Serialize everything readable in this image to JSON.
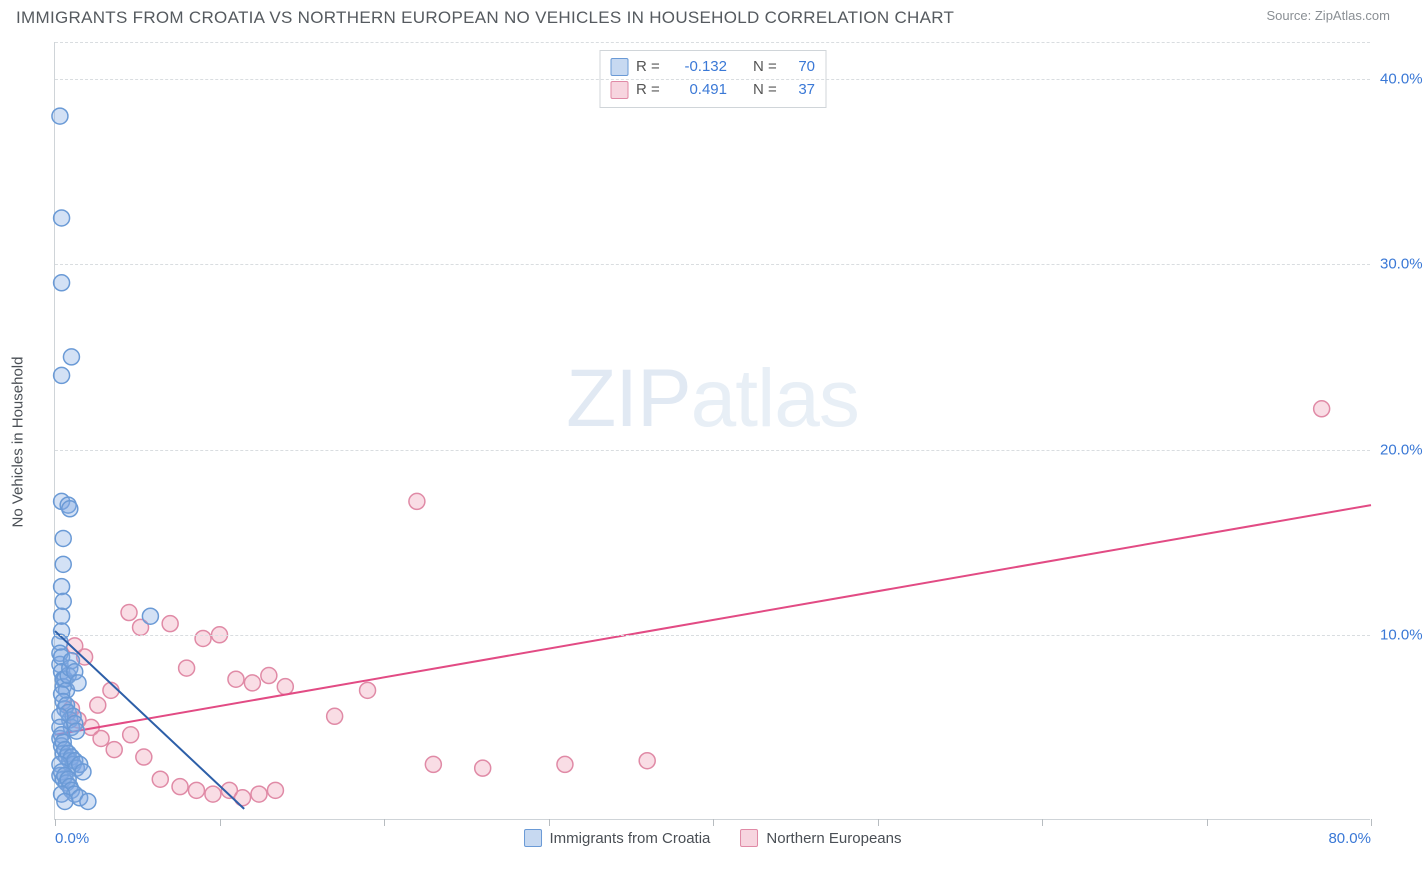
{
  "header": {
    "title": "IMMIGRANTS FROM CROATIA VS NORTHERN EUROPEAN NO VEHICLES IN HOUSEHOLD CORRELATION CHART",
    "source_prefix": "Source: ",
    "source_name": "ZipAtlas.com"
  },
  "chart": {
    "type": "scatter",
    "ylabel": "No Vehicles in Household",
    "watermark_a": "ZIP",
    "watermark_b": "atlas",
    "background_color": "#ffffff",
    "grid_color": "#d9dde0",
    "axis_color": "#cfd4d8",
    "axis_label_color": "#3a78d6",
    "xlim": [
      0,
      80
    ],
    "ylim": [
      0,
      42
    ],
    "x_ticks": [
      0,
      10,
      20,
      30,
      40,
      50,
      60,
      70,
      80
    ],
    "x_tick_labels": {
      "0": "0.0%",
      "80": "80.0%"
    },
    "y_gridlines": [
      10,
      20,
      30,
      40,
      42
    ],
    "y_tick_labels": {
      "10": "10.0%",
      "20": "20.0%",
      "30": "30.0%",
      "40": "40.0%"
    },
    "marker_radius": 8,
    "marker_stroke_width": 1.5,
    "line_width": 2,
    "series": {
      "croatia": {
        "label": "Immigrants from Croatia",
        "fill": "rgba(130,170,225,0.35)",
        "stroke": "#6a9ad6",
        "trend_color": "#2d5fa8",
        "trend": {
          "x1": 0,
          "y1": 10.2,
          "x2": 11.5,
          "y2": 0.6
        },
        "points": [
          [
            0.3,
            38.0
          ],
          [
            0.4,
            29.0
          ],
          [
            1.0,
            25.0
          ],
          [
            0.4,
            24.0
          ],
          [
            0.4,
            32.5
          ],
          [
            0.4,
            17.2
          ],
          [
            0.8,
            17.0
          ],
          [
            0.9,
            16.8
          ],
          [
            0.5,
            15.2
          ],
          [
            0.5,
            13.8
          ],
          [
            0.4,
            12.6
          ],
          [
            0.5,
            11.8
          ],
          [
            0.4,
            11.0
          ],
          [
            0.4,
            10.2
          ],
          [
            0.3,
            9.6
          ],
          [
            0.3,
            9.0
          ],
          [
            0.3,
            8.4
          ],
          [
            0.4,
            8.8
          ],
          [
            0.4,
            8.0
          ],
          [
            0.5,
            7.6
          ],
          [
            0.5,
            7.2
          ],
          [
            0.6,
            7.6
          ],
          [
            0.7,
            7.0
          ],
          [
            0.8,
            7.8
          ],
          [
            0.9,
            8.2
          ],
          [
            1.0,
            8.6
          ],
          [
            1.2,
            8.0
          ],
          [
            1.4,
            7.4
          ],
          [
            0.4,
            6.8
          ],
          [
            0.5,
            6.4
          ],
          [
            0.6,
            6.0
          ],
          [
            0.7,
            6.2
          ],
          [
            0.8,
            5.8
          ],
          [
            0.9,
            5.4
          ],
          [
            1.0,
            5.0
          ],
          [
            1.1,
            5.6
          ],
          [
            1.2,
            5.2
          ],
          [
            1.3,
            4.8
          ],
          [
            0.3,
            5.6
          ],
          [
            0.3,
            5.0
          ],
          [
            0.3,
            4.4
          ],
          [
            0.4,
            4.6
          ],
          [
            0.4,
            4.0
          ],
          [
            0.5,
            4.2
          ],
          [
            0.5,
            3.6
          ],
          [
            0.6,
            3.8
          ],
          [
            0.7,
            3.4
          ],
          [
            0.8,
            3.6
          ],
          [
            0.9,
            3.2
          ],
          [
            1.0,
            3.4
          ],
          [
            1.1,
            3.0
          ],
          [
            1.2,
            3.2
          ],
          [
            1.3,
            2.8
          ],
          [
            1.5,
            3.0
          ],
          [
            1.7,
            2.6
          ],
          [
            0.3,
            3.0
          ],
          [
            0.3,
            2.4
          ],
          [
            0.4,
            2.6
          ],
          [
            0.5,
            2.2
          ],
          [
            0.6,
            2.4
          ],
          [
            0.7,
            2.0
          ],
          [
            0.8,
            2.2
          ],
          [
            0.9,
            1.8
          ],
          [
            1.0,
            1.6
          ],
          [
            1.2,
            1.4
          ],
          [
            1.5,
            1.2
          ],
          [
            2.0,
            1.0
          ],
          [
            0.4,
            1.4
          ],
          [
            0.6,
            1.0
          ],
          [
            5.8,
            11.0
          ]
        ]
      },
      "northern": {
        "label": "Northern Europeans",
        "fill": "rgba(235,150,175,0.32)",
        "stroke": "#e08aa6",
        "trend_color": "#e24b84",
        "trend": {
          "x1": 0,
          "y1": 4.6,
          "x2": 80,
          "y2": 17.0
        },
        "points": [
          [
            77.0,
            22.2
          ],
          [
            22.0,
            17.2
          ],
          [
            4.5,
            11.2
          ],
          [
            1.2,
            9.4
          ],
          [
            1.8,
            8.8
          ],
          [
            2.6,
            6.2
          ],
          [
            3.4,
            7.0
          ],
          [
            5.2,
            10.4
          ],
          [
            7.0,
            10.6
          ],
          [
            8.0,
            8.2
          ],
          [
            9.0,
            9.8
          ],
          [
            10.0,
            10.0
          ],
          [
            11.0,
            7.6
          ],
          [
            12.0,
            7.4
          ],
          [
            13.0,
            7.8
          ],
          [
            14.0,
            7.2
          ],
          [
            17.0,
            5.6
          ],
          [
            19.0,
            7.0
          ],
          [
            23.0,
            3.0
          ],
          [
            26.0,
            2.8
          ],
          [
            31.0,
            3.0
          ],
          [
            36.0,
            3.2
          ],
          [
            1.0,
            6.0
          ],
          [
            1.4,
            5.4
          ],
          [
            2.2,
            5.0
          ],
          [
            2.8,
            4.4
          ],
          [
            3.6,
            3.8
          ],
          [
            4.6,
            4.6
          ],
          [
            5.4,
            3.4
          ],
          [
            6.4,
            2.2
          ],
          [
            7.6,
            1.8
          ],
          [
            8.6,
            1.6
          ],
          [
            9.6,
            1.4
          ],
          [
            10.6,
            1.6
          ],
          [
            11.4,
            1.2
          ],
          [
            12.4,
            1.4
          ],
          [
            13.4,
            1.6
          ]
        ]
      }
    },
    "legend_top": {
      "rows": [
        {
          "swatch": "blue",
          "r_label": "R =",
          "r_value": "-0.132",
          "n_label": "N =",
          "n_value": "70"
        },
        {
          "swatch": "pink",
          "r_label": "R =",
          "r_value": "0.491",
          "n_label": "N =",
          "n_value": "37"
        }
      ]
    }
  }
}
